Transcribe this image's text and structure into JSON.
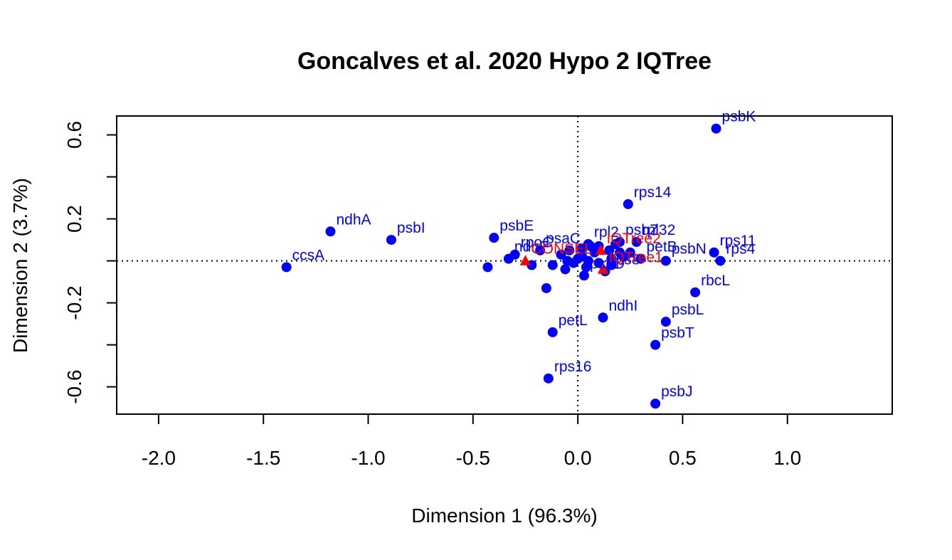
{
  "chart_data": {
    "type": "scatter",
    "title": "Goncalves et al. 2020 Hypo 2 IQTree",
    "xlabel": "Dimension 1 (96.3%)",
    "ylabel": "Dimension 2 (3.7%)",
    "xlim": [
      -2.2,
      1.5
    ],
    "ylim": [
      -0.73,
      0.69
    ],
    "xticks": [
      -2.0,
      -1.5,
      -1.0,
      -0.5,
      0.0,
      0.5,
      1.0
    ],
    "xtick_labels": [
      "-2.0",
      "-1.5",
      "-1.0",
      "-0.5",
      "0.0",
      "0.5",
      "1.0"
    ],
    "yticks": [
      -0.6,
      -0.4,
      -0.2,
      0.0,
      0.2,
      0.4,
      0.6
    ],
    "ytick_labels": [
      "-0.6",
      "",
      "-0.2",
      "",
      "0.2",
      "",
      "0.6"
    ],
    "reference_lines": {
      "x": 0,
      "y": 0,
      "style": "dotted"
    },
    "grid": false,
    "colors": {
      "genes": "#0000ff",
      "trees": "#ff0000"
    },
    "series": [
      {
        "marker": "circle",
        "color": "#0000ff",
        "points": [
          {
            "label": "psbK",
            "x": 0.66,
            "y": 0.63
          },
          {
            "label": "rps14",
            "x": 0.24,
            "y": 0.27
          },
          {
            "label": "ndhA",
            "x": -1.18,
            "y": 0.14
          },
          {
            "label": "psbI",
            "x": -0.89,
            "y": 0.1
          },
          {
            "label": "psbE",
            "x": -0.4,
            "y": 0.11
          },
          {
            "label": "ccsA",
            "x": -1.39,
            "y": -0.03
          },
          {
            "label": "psaC",
            "x": -0.18,
            "y": 0.05
          },
          {
            "label": "rpl32",
            "x": 0.28,
            "y": 0.09
          },
          {
            "label": "psbZ",
            "x": 0.2,
            "y": 0.09
          },
          {
            "label": "rps11",
            "x": 0.65,
            "y": 0.04
          },
          {
            "label": "rps4",
            "x": 0.68,
            "y": 0.0
          },
          {
            "label": "psbN",
            "x": 0.42,
            "y": 0.0
          },
          {
            "label": "rbcL",
            "x": 0.56,
            "y": -0.15
          },
          {
            "label": "psbL",
            "x": 0.42,
            "y": -0.29
          },
          {
            "label": "psbT",
            "x": 0.37,
            "y": -0.4
          },
          {
            "label": "psbJ",
            "x": 0.37,
            "y": -0.68
          },
          {
            "label": "ndhI",
            "x": 0.12,
            "y": -0.27
          },
          {
            "label": "petL",
            "x": -0.12,
            "y": -0.34
          },
          {
            "label": "rps16",
            "x": -0.14,
            "y": -0.56
          },
          {
            "label": "psbD",
            "x": 0.03,
            "y": -0.07
          },
          {
            "label": "ndhF",
            "x": -0.33,
            "y": 0.01
          },
          {
            "label": "rpoC",
            "x": -0.3,
            "y": 0.03
          },
          {
            "label": "rps8",
            "x": 0.13,
            "y": -0.05
          },
          {
            "label": "petB",
            "x": 0.3,
            "y": 0.01
          },
          {
            "label": "rpl2",
            "x": 0.05,
            "y": 0.08
          },
          {
            "label": "",
            "x": -0.43,
            "y": -0.03
          },
          {
            "label": "",
            "x": -0.15,
            "y": -0.13
          },
          {
            "label": "",
            "x": -0.22,
            "y": -0.02
          },
          {
            "label": "",
            "x": -0.12,
            "y": -0.02
          },
          {
            "label": "",
            "x": -0.06,
            "y": -0.04
          },
          {
            "label": "",
            "x": -0.02,
            "y": -0.01
          },
          {
            "label": "",
            "x": 0.02,
            "y": 0.02
          },
          {
            "label": "",
            "x": 0.05,
            "y": 0.0
          },
          {
            "label": "",
            "x": 0.08,
            "y": 0.04
          },
          {
            "label": "",
            "x": 0.1,
            "y": 0.07
          },
          {
            "label": "",
            "x": 0.15,
            "y": 0.05
          },
          {
            "label": "",
            "x": 0.16,
            "y": 0.01
          },
          {
            "label": "",
            "x": 0.18,
            "y": 0.08
          },
          {
            "label": "",
            "x": 0.22,
            "y": 0.02
          },
          {
            "label": "",
            "x": 0.25,
            "y": 0.04
          },
          {
            "label": "",
            "x": 0.06,
            "y": 0.07
          },
          {
            "label": "",
            "x": -0.08,
            "y": 0.03
          },
          {
            "label": "",
            "x": -0.04,
            "y": 0.05
          },
          {
            "label": "",
            "x": 0.0,
            "y": 0.01
          },
          {
            "label": "",
            "x": 0.04,
            "y": -0.03
          },
          {
            "label": "",
            "x": 0.1,
            "y": -0.01
          },
          {
            "label": "",
            "x": 0.16,
            "y": -0.02
          },
          {
            "label": "",
            "x": 0.2,
            "y": 0.04
          },
          {
            "label": "",
            "x": 0.02,
            "y": 0.06
          },
          {
            "label": "",
            "x": -0.05,
            "y": 0.0
          }
        ]
      },
      {
        "marker": "triangle",
        "color": "#ff0000",
        "points": [
          {
            "label": "CONSEL",
            "x": -0.25,
            "y": 0.0
          },
          {
            "label": "IQTree2",
            "x": 0.11,
            "y": 0.05
          },
          {
            "label": "IQTree1",
            "x": 0.12,
            "y": -0.04
          }
        ]
      }
    ]
  }
}
